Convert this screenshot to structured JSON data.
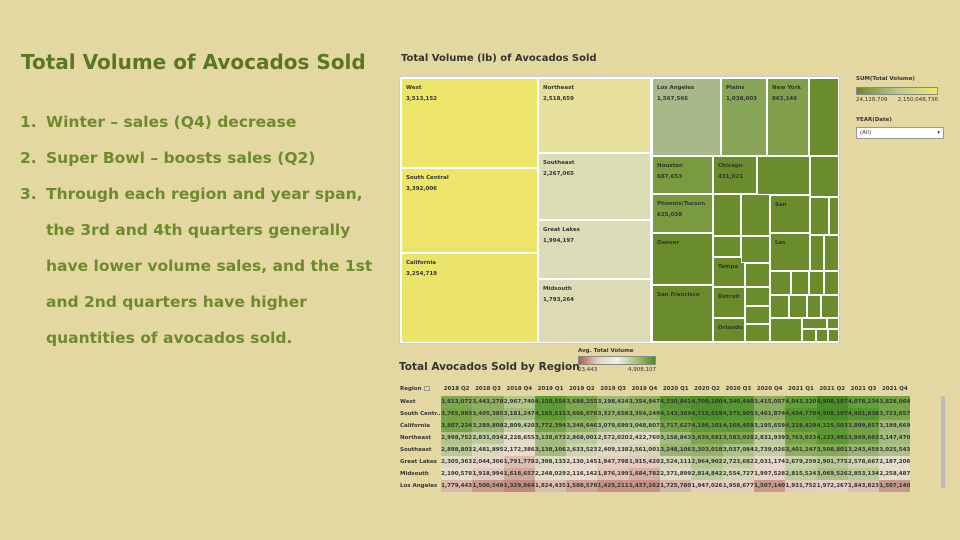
{
  "slide": {
    "title": "Total Volume of Avocados Sold",
    "bullets": [
      {
        "num": "1.",
        "text": "Winter  – sales (Q4) decrease"
      },
      {
        "num": "2.",
        "text": "Super Bowl – boosts sales (Q2)"
      },
      {
        "num": "3.",
        "text": "Through each region and year span, the 3rd and 4th quarters generally have lower volume sales, and the 1st and 2nd quarters have higher quantities of avocados sold."
      }
    ]
  },
  "treemap": {
    "title": "Total Volume (lb) of Avocados Sold",
    "cells": [
      {
        "name": "West",
        "value": "3,513,152",
        "color": "#ede56a"
      },
      {
        "name": "South Central",
        "value": "3,392,006",
        "color": "#ece56a"
      },
      {
        "name": "California",
        "value": "3,254,719",
        "color": "#ebe46a"
      },
      {
        "name": "Northeast",
        "value": "2,518,659",
        "color": "#e6e09a"
      },
      {
        "name": "Southeast",
        "value": "2,267,065",
        "color": "#dcdcb6"
      },
      {
        "name": "Great Lakes",
        "value": "1,994,197",
        "color": "#dddcb8"
      },
      {
        "name": "Midsouth",
        "value": "1,793,264",
        "color": "#dcdbb6"
      },
      {
        "name": "Los Angeles",
        "value": "1,567,566",
        "color": "#a6b98a"
      },
      {
        "name": "Plains",
        "value": "1,038,003",
        "color": "#88a55a"
      },
      {
        "name": "New York",
        "value": "863,146",
        "color": "#82a04c"
      },
      {
        "name": "Houston",
        "value": "687,653",
        "color": "#7a9a40"
      },
      {
        "name": "Chicago",
        "value": "431,021",
        "color": "#6a8c2c"
      },
      {
        "name": "Phoenix/Tucson",
        "value": "625,038",
        "color": "#7a9a40"
      },
      {
        "name": "Denver",
        "value": "",
        "color": "#6a8c2c"
      },
      {
        "name": "San",
        "value": "",
        "color": "#6a8c2c"
      },
      {
        "name": "Las",
        "value": "",
        "color": "#6a8c2c"
      },
      {
        "name": "Tampa",
        "value": "",
        "color": "#6a8c2c"
      },
      {
        "name": "Detroit",
        "value": "",
        "color": "#6a8c2c"
      },
      {
        "name": "San Francisco",
        "value": "",
        "color": "#6a8c2c"
      },
      {
        "name": "Orlando",
        "value": "",
        "color": "#6a8c2c"
      }
    ],
    "small_cell_color": "#6a8c2c",
    "legend": {
      "title": "SUM(Total Volume)",
      "min": "24,128,709",
      "max": "2,150,048,736"
    },
    "filter": {
      "label": "YEAR(Date)",
      "value": "(All)"
    }
  },
  "heatmap": {
    "title": "Total Avocados Sold by Region",
    "legend": {
      "title": "Avg. Total Volume",
      "min": "23,443",
      "max": "4,908,107"
    },
    "row_header": "Region",
    "columns": [
      "2018 Q2",
      "2018 Q3",
      "2018 Q4",
      "2019 Q1",
      "2019 Q2",
      "2019 Q3",
      "2019 Q4",
      "2020 Q1",
      "2020 Q2",
      "2020 Q3",
      "2020 Q4",
      "2021 Q1",
      "2021 Q2",
      "2021 Q3",
      "2021 Q4"
    ],
    "rows": [
      {
        "region": "West",
        "cells": [
          {
            "v": "3,613,072",
            "c": "#80a852"
          },
          {
            "v": "3,443,278",
            "c": "#8cae5e"
          },
          {
            "v": "2,967,740",
            "c": "#b3c68e"
          },
          {
            "v": "4,150,554",
            "c": "#5e9a36"
          },
          {
            "v": "3,688,255",
            "c": "#7ca64e"
          },
          {
            "v": "3,198,424",
            "c": "#9db878"
          },
          {
            "v": "3,354,947",
            "c": "#90b066"
          },
          {
            "v": "4,330,841",
            "c": "#589634"
          },
          {
            "v": "4,708,100",
            "c": "#4e8e2c"
          },
          {
            "v": "4,340,440",
            "c": "#589634"
          },
          {
            "v": "3,415,057",
            "c": "#8cae5e"
          },
          {
            "v": "4,043,320",
            "c": "#64a03a"
          },
          {
            "v": "4,908,107",
            "c": "#4a8a28"
          },
          {
            "v": "4,078,234",
            "c": "#62a03a"
          },
          {
            "v": "3,828,064",
            "c": "#74a446"
          }
        ]
      },
      {
        "region": "South Centr..",
        "cells": [
          {
            "v": "3,765,983",
            "c": "#78a448"
          },
          {
            "v": "3,405,385",
            "c": "#8eae62"
          },
          {
            "v": "3,181,247",
            "c": "#a0ba7c"
          },
          {
            "v": "4,165,511",
            "c": "#5e9a36"
          },
          {
            "v": "3,666,078",
            "c": "#7ea64e"
          },
          {
            "v": "3,327,658",
            "c": "#94b26a"
          },
          {
            "v": "3,354,249",
            "c": "#90b066"
          },
          {
            "v": "4,143,369",
            "c": "#609a38"
          },
          {
            "v": "4,715,619",
            "c": "#4e8e2c"
          },
          {
            "v": "4,375,905",
            "c": "#589634"
          },
          {
            "v": "3,461,874",
            "c": "#8aac5c"
          },
          {
            "v": "4,434,778",
            "c": "#549232"
          },
          {
            "v": "4,908,107",
            "c": "#4a8a28"
          },
          {
            "v": "4,401,838",
            "c": "#569432"
          },
          {
            "v": "3,723,657",
            "c": "#7aa44a"
          }
        ]
      },
      {
        "region": "California",
        "cells": [
          {
            "v": "3,807,224",
            "c": "#76a446"
          },
          {
            "v": "3,289,808",
            "c": "#96b46e"
          },
          {
            "v": "2,809,420",
            "c": "#c0cea0"
          },
          {
            "v": "3,772,394",
            "c": "#78a448"
          },
          {
            "v": "3,348,646",
            "c": "#92b268"
          },
          {
            "v": "3,079,699",
            "c": "#a8c084"
          },
          {
            "v": "3,048,807",
            "c": "#aac286"
          },
          {
            "v": "3,717,627",
            "c": "#7aa44a"
          },
          {
            "v": "4,186,101",
            "c": "#5e9a36"
          },
          {
            "v": "4,168,459",
            "c": "#5e9a36"
          },
          {
            "v": "3,195,659",
            "c": "#9eb87a"
          },
          {
            "v": "4,218,429",
            "c": "#5c9834"
          },
          {
            "v": "4,225,503",
            "c": "#5c9834"
          },
          {
            "v": "3,899,857",
            "c": "#70a244"
          },
          {
            "v": "3,199,669",
            "c": "#9eb87a"
          }
        ]
      },
      {
        "region": "Northeast",
        "cells": [
          {
            "v": "2,998,752",
            "c": "#b0c48c"
          },
          {
            "v": "2,831,034",
            "c": "#bccc9a"
          },
          {
            "v": "2,228,655",
            "c": "#e2dcc8"
          },
          {
            "v": "3,138,673",
            "c": "#a4bc80"
          },
          {
            "v": "2,868,001",
            "c": "#bacc98"
          },
          {
            "v": "2,572,020",
            "c": "#d2d6b4"
          },
          {
            "v": "2,422,760",
            "c": "#dcdac0"
          },
          {
            "v": "3,158,843",
            "c": "#a2bc7e"
          },
          {
            "v": "3,630,681",
            "c": "#7ea64e"
          },
          {
            "v": "3,583,028",
            "c": "#82a852"
          },
          {
            "v": "2,831,939",
            "c": "#bccc9a"
          },
          {
            "v": "3,763,023",
            "c": "#78a448"
          },
          {
            "v": "4,223,491",
            "c": "#5c9834"
          },
          {
            "v": "3,849,603",
            "c": "#72a244"
          },
          {
            "v": "3,147,470",
            "c": "#a2bc7e"
          }
        ]
      },
      {
        "region": "Southeast",
        "cells": [
          {
            "v": "2,898,803",
            "c": "#b8ca96"
          },
          {
            "v": "2,481,895",
            "c": "#d8d8bc"
          },
          {
            "v": "2,172,386",
            "c": "#e6dccc"
          },
          {
            "v": "3,138,106",
            "c": "#a4bc80"
          },
          {
            "v": "2,633,523",
            "c": "#cdd4ae"
          },
          {
            "v": "2,409,138",
            "c": "#dcdac0"
          },
          {
            "v": "2,561,001",
            "c": "#d2d6b4"
          },
          {
            "v": "3,248,106",
            "c": "#98b672"
          },
          {
            "v": "3,303,018",
            "c": "#94b26a"
          },
          {
            "v": "3,037,084",
            "c": "#aac286"
          },
          {
            "v": "2,739,026",
            "c": "#c4d0a4"
          },
          {
            "v": "3,401,247",
            "c": "#8eae62"
          },
          {
            "v": "3,508,801",
            "c": "#86aa56"
          },
          {
            "v": "3,243,459",
            "c": "#98b672"
          },
          {
            "v": "3,025,543",
            "c": "#acc288"
          }
        ]
      },
      {
        "region": "Great Lakes",
        "cells": [
          {
            "v": "2,305,363",
            "c": "#e0dac6"
          },
          {
            "v": "2,044,306",
            "c": "#e8d8cc"
          },
          {
            "v": "1,791,779",
            "c": "#dcbeb0"
          },
          {
            "v": "2,398,133",
            "c": "#dcdac0"
          },
          {
            "v": "2,130,145",
            "c": "#e8dbcc"
          },
          {
            "v": "1,947,798",
            "c": "#e4cdc0"
          },
          {
            "v": "1,915,420",
            "c": "#e2cabe"
          },
          {
            "v": "2,524,111",
            "c": "#d4d6b6"
          },
          {
            "v": "2,964,902",
            "c": "#b4c690"
          },
          {
            "v": "2,723,682",
            "c": "#c6d0a6"
          },
          {
            "v": "2,031,174",
            "c": "#e8d6ca"
          },
          {
            "v": "2,679,259",
            "c": "#c8d2a8"
          },
          {
            "v": "2,901,775",
            "c": "#b8ca96"
          },
          {
            "v": "2,578,667",
            "c": "#d0d4b2"
          },
          {
            "v": "2,187,206",
            "c": "#e6dccc"
          }
        ]
      },
      {
        "region": "Midsouth",
        "cells": [
          {
            "v": "2,190,578",
            "c": "#e6dccc"
          },
          {
            "v": "1,918,994",
            "c": "#e2cabe"
          },
          {
            "v": "1,618,657",
            "c": "#d0a89a"
          },
          {
            "v": "2,248,029",
            "c": "#e2dcc8"
          },
          {
            "v": "2,116,142",
            "c": "#e8dacc"
          },
          {
            "v": "1,876,199",
            "c": "#e0c6b8"
          },
          {
            "v": "1,684,782",
            "c": "#d4b0a2"
          },
          {
            "v": "2,371,899",
            "c": "#dedac2"
          },
          {
            "v": "2,814,842",
            "c": "#bccc9a"
          },
          {
            "v": "2,554,727",
            "c": "#d2d6b4"
          },
          {
            "v": "1,997,528",
            "c": "#e6d2c6"
          },
          {
            "v": "2,815,524",
            "c": "#bccc9a"
          },
          {
            "v": "3,069,526",
            "c": "#a8c084"
          },
          {
            "v": "2,853,134",
            "c": "#bacc98"
          },
          {
            "v": "2,258,487",
            "c": "#e2dcc8"
          }
        ]
      },
      {
        "region": "Los Angeles",
        "cells": [
          {
            "v": "1,779,443",
            "c": "#dab8aa"
          },
          {
            "v": "1,500,549",
            "c": "#c8988a"
          },
          {
            "v": "1,329,864",
            "c": "#c08a7c"
          },
          {
            "v": "1,824,435",
            "c": "#dcbeb0"
          },
          {
            "v": "1,588,578",
            "c": "#cea496"
          },
          {
            "v": "1,425,211",
            "c": "#c49284"
          },
          {
            "v": "1,437,262",
            "c": "#c49284"
          },
          {
            "v": "1,725,780",
            "c": "#d6b4a6"
          },
          {
            "v": "1,947,026",
            "c": "#e4ccc0"
          },
          {
            "v": "1,958,677",
            "c": "#e4cec2"
          },
          {
            "v": "1,507,140",
            "c": "#c8988a"
          },
          {
            "v": "1,931,752",
            "c": "#e2cabe"
          },
          {
            "v": "1,972,267",
            "c": "#e4d0c4"
          },
          {
            "v": "1,843,823",
            "c": "#dcc0b2"
          },
          {
            "v": "1,507,140",
            "c": "#c8988a"
          }
        ]
      }
    ]
  }
}
